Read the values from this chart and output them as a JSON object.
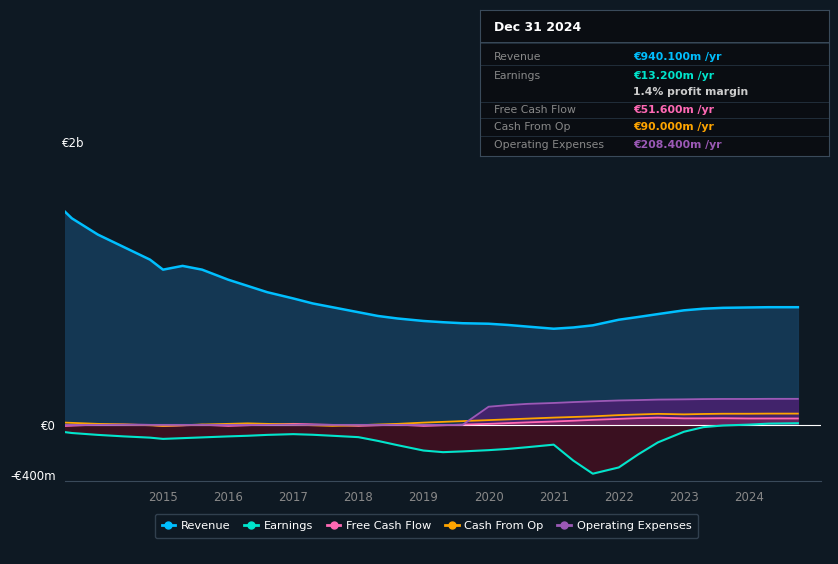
{
  "bg_color": "#0e1923",
  "plot_bg_color": "#0e1923",
  "title_text": "Dec 31 2024",
  "info_box": {
    "bg": "#080c10",
    "border": "#333333",
    "rows": [
      {
        "label": "Revenue",
        "value": "€940.100m /yr",
        "value_color": "#00bfff"
      },
      {
        "label": "Earnings",
        "value": "€13.200m /yr",
        "value_color": "#00e5cc"
      },
      {
        "label": "",
        "value": "1.4% profit margin",
        "value_color": "#cccccc"
      },
      {
        "label": "Free Cash Flow",
        "value": "€51.600m /yr",
        "value_color": "#ff69b4"
      },
      {
        "label": "Cash From Op",
        "value": "€90.000m /yr",
        "value_color": "#ffa500"
      },
      {
        "label": "Operating Expenses",
        "value": "€208.400m /yr",
        "value_color": "#9b59b6"
      }
    ]
  },
  "years": [
    2013.0,
    2013.3,
    2013.6,
    2014.0,
    2014.4,
    2014.8,
    2015.0,
    2015.3,
    2015.6,
    2016.0,
    2016.3,
    2016.6,
    2017.0,
    2017.3,
    2017.6,
    2018.0,
    2018.3,
    2018.6,
    2019.0,
    2019.3,
    2019.6,
    2020.0,
    2020.3,
    2020.6,
    2021.0,
    2021.3,
    2021.6,
    2022.0,
    2022.3,
    2022.6,
    2023.0,
    2023.3,
    2023.6,
    2024.0,
    2024.3,
    2024.75
  ],
  "revenue": [
    1950,
    1800,
    1650,
    1520,
    1420,
    1320,
    1240,
    1270,
    1240,
    1160,
    1110,
    1060,
    1010,
    970,
    940,
    900,
    870,
    850,
    830,
    820,
    812,
    808,
    798,
    785,
    768,
    778,
    795,
    840,
    862,
    885,
    915,
    928,
    935,
    938,
    940,
    940
  ],
  "earnings": [
    -25,
    -45,
    -65,
    -80,
    -92,
    -102,
    -112,
    -106,
    -100,
    -92,
    -87,
    -80,
    -74,
    -79,
    -87,
    -98,
    -128,
    -162,
    -205,
    -218,
    -212,
    -202,
    -192,
    -178,
    -158,
    -285,
    -390,
    -340,
    -235,
    -140,
    -55,
    -18,
    -5,
    2,
    10,
    13
  ],
  "free_cash_flow": [
    -18,
    -12,
    -6,
    2,
    3,
    0,
    -8,
    -4,
    1,
    -8,
    -3,
    3,
    8,
    4,
    0,
    -8,
    -3,
    2,
    -8,
    -3,
    2,
    8,
    14,
    20,
    27,
    33,
    40,
    48,
    54,
    58,
    52,
    52,
    53,
    51,
    51,
    51
  ],
  "cash_from_op": [
    28,
    22,
    16,
    8,
    3,
    -3,
    -8,
    -3,
    3,
    8,
    12,
    8,
    2,
    -3,
    -8,
    -3,
    3,
    8,
    18,
    24,
    30,
    38,
    44,
    50,
    58,
    63,
    68,
    78,
    83,
    88,
    84,
    87,
    89,
    89,
    90,
    90
  ],
  "operating_expenses": [
    0,
    0,
    0,
    0,
    0,
    0,
    0,
    0,
    0,
    0,
    0,
    0,
    0,
    0,
    0,
    0,
    0,
    0,
    0,
    0,
    0,
    145,
    158,
    168,
    175,
    182,
    188,
    195,
    198,
    202,
    204,
    206,
    207,
    207,
    208,
    208
  ],
  "ylim": [
    -450,
    2100
  ],
  "xlim": [
    2013.5,
    2025.1
  ],
  "yticks": [
    -400,
    0,
    2000
  ],
  "ytick_labels": [
    "-€400m",
    "€0",
    "€2b"
  ],
  "xticks": [
    2015,
    2016,
    2017,
    2018,
    2019,
    2020,
    2021,
    2022,
    2023,
    2024
  ],
  "colors": {
    "revenue": "#00bfff",
    "earnings": "#00e5cc",
    "free_cash_flow": "#ff69b4",
    "cash_from_op": "#ffa500",
    "operating_expenses": "#9b59b6",
    "revenue_fill": "#163d5c",
    "earnings_fill_neg": "#3d1020",
    "op_exp_fill": "#4a2070"
  },
  "legend": [
    {
      "label": "Revenue",
      "color": "#00bfff"
    },
    {
      "label": "Earnings",
      "color": "#00e5cc"
    },
    {
      "label": "Free Cash Flow",
      "color": "#ff69b4"
    },
    {
      "label": "Cash From Op",
      "color": "#ffa500"
    },
    {
      "label": "Operating Expenses",
      "color": "#9b59b6"
    }
  ]
}
